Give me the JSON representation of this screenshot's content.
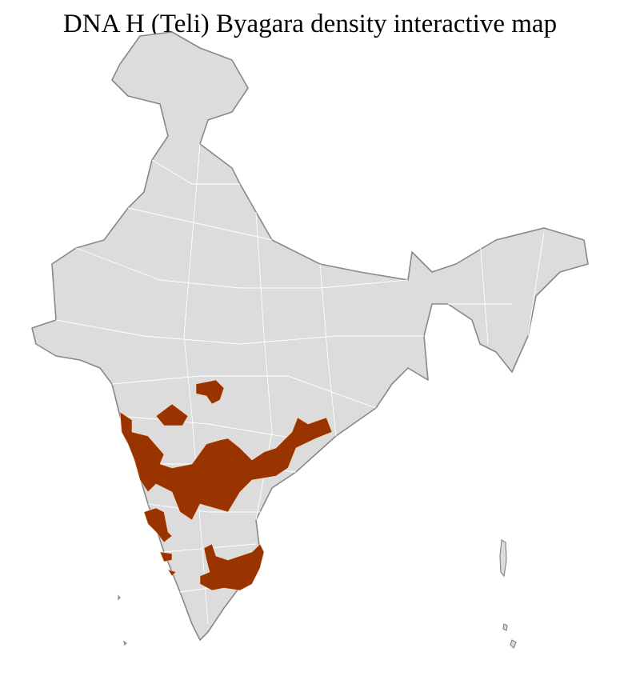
{
  "title": "DNA H (Teli) Byagara density interactive map",
  "colors": {
    "highlight": "#993300",
    "base": "#dcdcdc",
    "border": "#888888",
    "district_lines": "#ffffff"
  },
  "legend": null
}
